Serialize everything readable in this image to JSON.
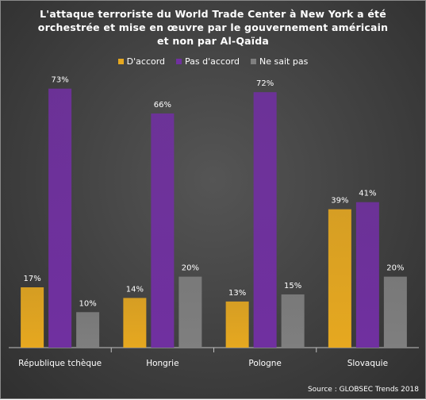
{
  "chart_data": {
    "type": "bar",
    "title": "L'attaque terroriste du World Trade Center à New York a été\norchestrée et mise en œuvre par le gouvernement américain\net non par Al-Qaïda",
    "categories": [
      "République tchèque",
      "Hongrie",
      "Pologne",
      "Slovaquie"
    ],
    "series": [
      {
        "name": "D'accord",
        "values": [
          17,
          14,
          13,
          39
        ],
        "color": "#e6a820"
      },
      {
        "name": "Pas d'accord",
        "values": [
          73,
          66,
          72,
          41
        ],
        "color": "#7030a0"
      },
      {
        "name": "Ne sait pas",
        "values": [
          10,
          20,
          15,
          20
        ],
        "color": "#7f7f7f"
      }
    ],
    "value_suffix": "%",
    "ylim": [
      0,
      80
    ],
    "grid": false,
    "legend_position": "top",
    "source": "Source : GLOBSEC Trends 2018"
  }
}
